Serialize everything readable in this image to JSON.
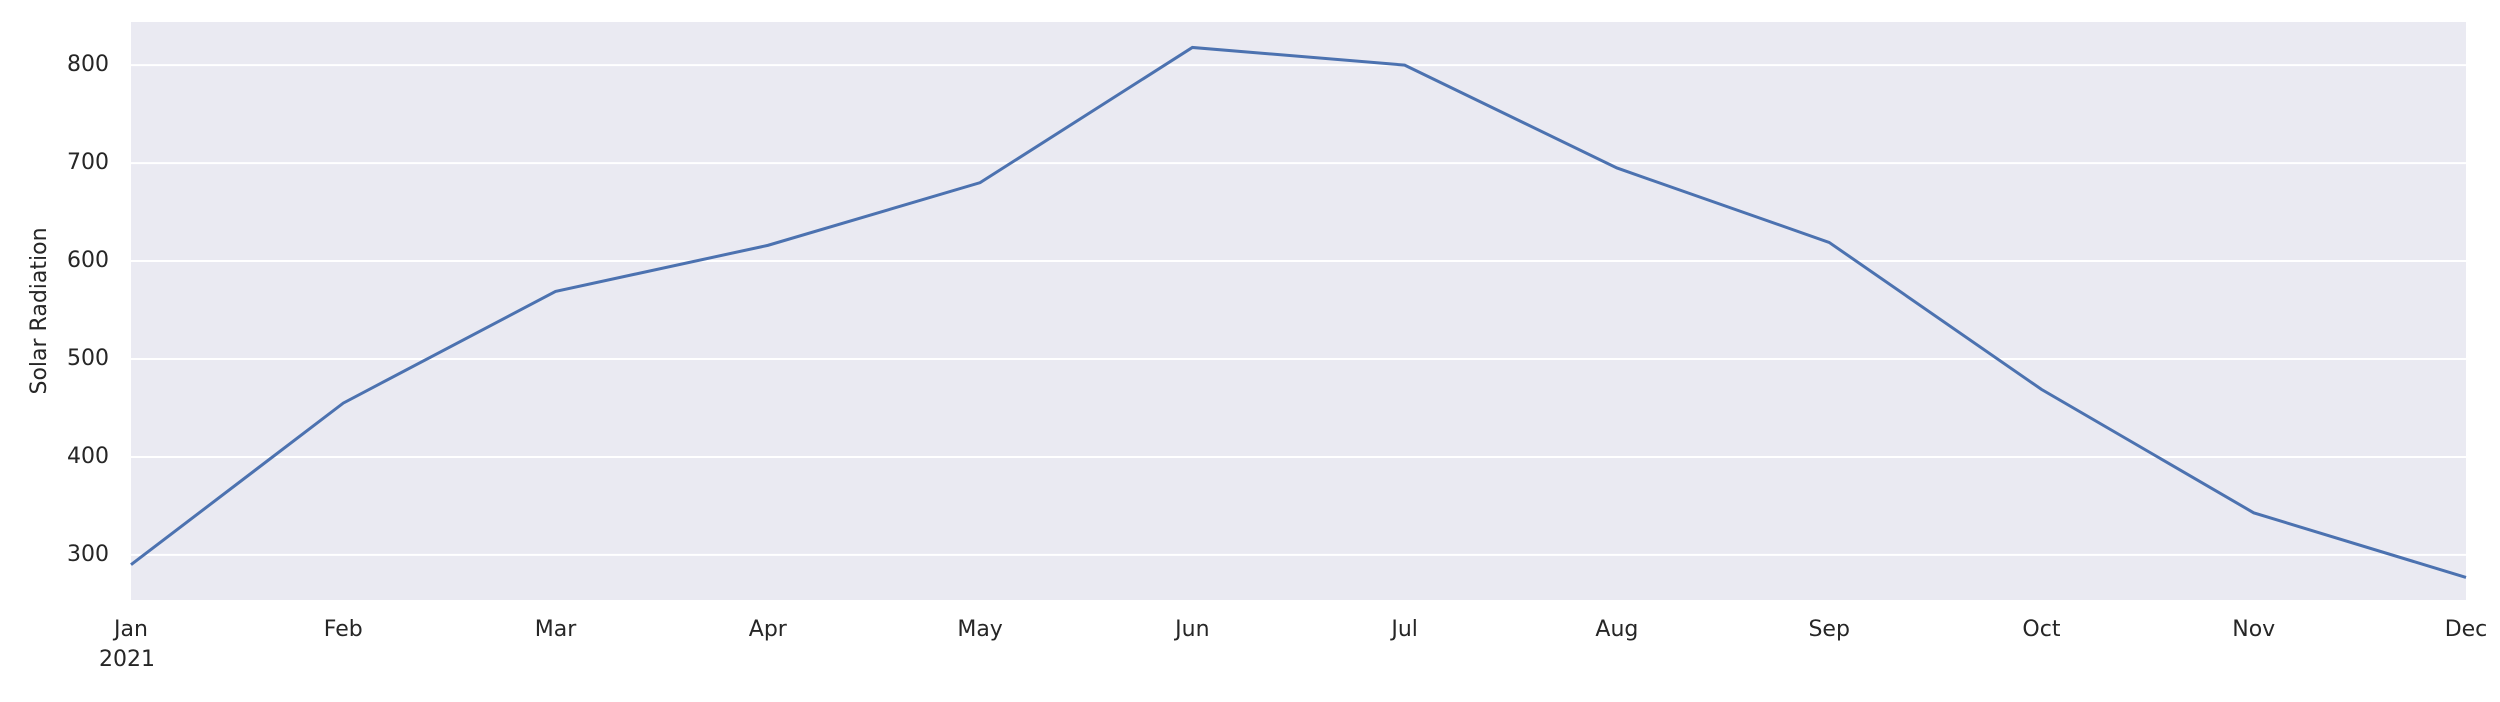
{
  "chart_data": {
    "type": "line",
    "y_label": "Solar Radiation",
    "year_label": "2021",
    "categories": [
      "Jan",
      "Feb",
      "Mar",
      "Apr",
      "May",
      "Jun",
      "Jul",
      "Aug",
      "Sep",
      "Oct",
      "Nov",
      "Dec"
    ],
    "series": [
      {
        "name": "Solar Radiation",
        "color": "#4c72b0",
        "values": [
          290,
          455,
          569,
          616,
          680,
          818,
          800,
          695,
          619,
          469,
          343,
          277
        ]
      }
    ],
    "ylim": [
      254,
      844
    ],
    "yticks": [
      300,
      400,
      500,
      600,
      700,
      800
    ],
    "grid": true
  }
}
